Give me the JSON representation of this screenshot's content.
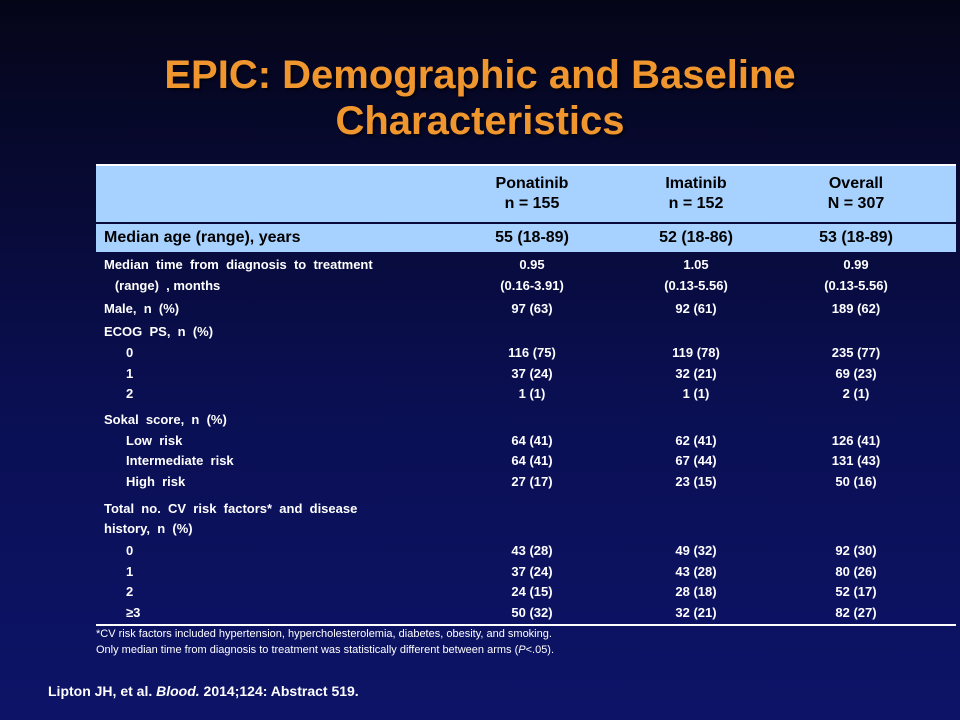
{
  "title": {
    "line1": "EPIC: Demographic and Baseline",
    "line2": "Characteristics"
  },
  "header": {
    "col1_name": "Ponatinib",
    "col1_n": "n = 155",
    "col2_name": "Imatinib",
    "col2_n": "n = 152",
    "col3_name": "Overall",
    "col3_n": "N = 307"
  },
  "age_row": {
    "label": "Median age (range), years",
    "v1": "55 (18-89)",
    "v2": "52 (18-86)",
    "v3": "53 (18-89)"
  },
  "rows": [
    {
      "label": "Median  time  from  diagnosis  to  treatment",
      "v1": "0.95",
      "v2": "1.05",
      "v3": "0.99"
    },
    {
      "label": "   (range)  , months",
      "v1": "(0.16-3.91)",
      "v2": "(0.13-5.56)",
      "v3": "(0.13-5.56)"
    },
    {
      "label": "Male,  n  (%)",
      "v1": "97  (63)",
      "v2": "92  (61)",
      "v3": "189  (62)"
    },
    {
      "label": "ECOG  PS,  n  (%)",
      "v1": "",
      "v2": "",
      "v3": ""
    },
    {
      "label": "0",
      "v1": "116  (75)",
      "v2": "119  (78)",
      "v3": "235  (77)"
    },
    {
      "label": "1",
      "v1": "37  (24)",
      "v2": "32  (21)",
      "v3": "69  (23)"
    },
    {
      "label": "2",
      "v1": "1  (1)",
      "v2": "1  (1)",
      "v3": "2  (1)"
    },
    {
      "label": "Sokal  score,  n  (%)",
      "v1": "",
      "v2": "",
      "v3": ""
    },
    {
      "label": "Low  risk",
      "v1": "64  (41)",
      "v2": "62  (41)",
      "v3": "126  (41)"
    },
    {
      "label": "Intermediate  risk",
      "v1": "64  (41)",
      "v2": "67  (44)",
      "v3": "131  (43)"
    },
    {
      "label": "High  risk",
      "v1": "27  (17)",
      "v2": "23  (15)",
      "v3": "50  (16)"
    },
    {
      "label": "Total  no.  CV  risk  factors*  and  disease",
      "v1": "",
      "v2": "",
      "v3": ""
    },
    {
      "label": "history,  n  (%)",
      "v1": "",
      "v2": "",
      "v3": ""
    },
    {
      "label": "0",
      "v1": "43  (28)",
      "v2": "49  (32)",
      "v3": "92  (30)"
    },
    {
      "label": "1",
      "v1": "37  (24)",
      "v2": "43  (28)",
      "v3": "80  (26)"
    },
    {
      "label": "2",
      "v1": "24  (15)",
      "v2": "28  (18)",
      "v3": "52  (17)"
    },
    {
      "label": "≥3",
      "v1": "50  (32)",
      "v2": "32  (21)",
      "v3": "82  (27)"
    }
  ],
  "footnote": {
    "line1": "*CV risk factors included hypertension, hypercholesterolemia,  diabetes, obesity, and smoking.",
    "line2_pre": "Only median time from diagnosis to treatment was statistically different between arms (",
    "line2_p": "P",
    "line2_post": "<.05)."
  },
  "citation": {
    "pre": "Lipton JH, et al. ",
    "journal": "Blood.",
    "post": " 2014;124: Abstract 519."
  }
}
